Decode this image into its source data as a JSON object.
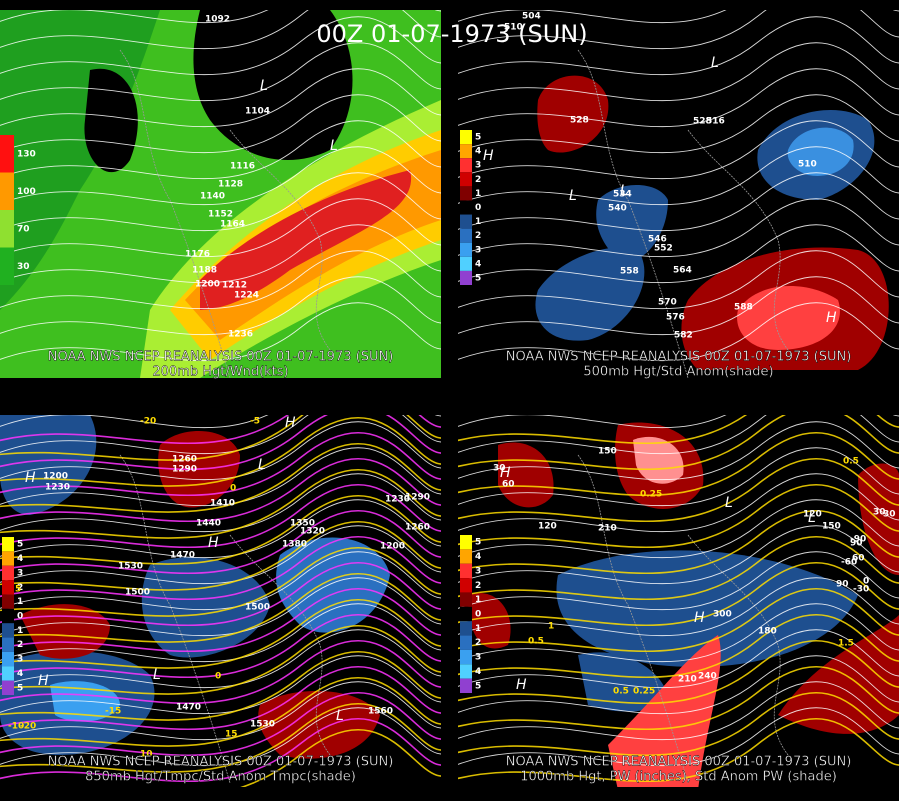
{
  "title": "00Z 01-07-1973 (SUN)",
  "panels": [
    {
      "source": "NOAA NWS NCEP REANALYSIS 00Z 01-07-1973 (SUN)",
      "caption": "200mb Hgt/Wnd(kts)",
      "legend": [
        "130",
        "100",
        "70",
        "30"
      ],
      "contour_labels": [
        "1092",
        "1104",
        "1116",
        "1128",
        "1140",
        "1152",
        "1164",
        "1176",
        "1188",
        "1200",
        "1212",
        "1224",
        "1236"
      ],
      "centers": [
        "L",
        "L"
      ]
    },
    {
      "source": "NOAA NWS NCEP REANALYSIS 00Z 01-07-1973 (SUN)",
      "caption": "500mb Hgt/Std Anom(shade)",
      "legend": [
        "5",
        "4",
        "3",
        "2",
        "1",
        "0",
        "1",
        "2",
        "3",
        "4",
        "5"
      ],
      "contour_labels": [
        "504",
        "510",
        "516",
        "528",
        "534",
        "540",
        "546",
        "552",
        "558",
        "564",
        "570",
        "576",
        "582",
        "588",
        "510",
        "528"
      ],
      "centers": [
        "H",
        "L",
        "L",
        "H",
        "L"
      ]
    },
    {
      "source": "NOAA NWS NCEP REANALYSIS 00Z 01-07-1973 (SUN)",
      "caption": "850mb Hgt/Tmpc/Std Anom Tmpc(shade)",
      "legend": [
        "5",
        "4",
        "3",
        "2",
        "1",
        "0",
        "1",
        "2",
        "3",
        "4",
        "5"
      ],
      "contour_labels": [
        "1200",
        "1230",
        "1260",
        "1290",
        "1410",
        "1440",
        "1470",
        "1500",
        "1530",
        "1350",
        "1380",
        "1320",
        "1290",
        "1230",
        "1260",
        "1200",
        "1560",
        "1470",
        "1500",
        "1530"
      ],
      "temp_labels": [
        "-20",
        "-5",
        "0",
        "5",
        "0",
        "-10",
        "-15",
        "-20",
        "10",
        "15"
      ],
      "centers": [
        "H",
        "L",
        "H",
        "L",
        "H",
        "L",
        "H"
      ]
    },
    {
      "source": "NOAA NWS NCEP REANALYSIS 00Z 01-07-1973 (SUN)",
      "caption": "1000mb Hgt, PW (inches), Std Anom PW (shade)",
      "legend": [
        "5",
        "4",
        "3",
        "2",
        "1",
        "0",
        "1",
        "2",
        "3",
        "4",
        "5"
      ],
      "contour_labels": [
        "30",
        "60",
        "120",
        "150",
        "210",
        "300",
        "240",
        "210",
        "180",
        "120",
        "150",
        "90",
        "60",
        "30",
        "0",
        "-30",
        "-60",
        "-90",
        "30",
        "90"
      ],
      "pw_labels": [
        "0.25",
        "0.5",
        "0.25",
        "0.5",
        "1",
        "1.5",
        "0.5"
      ],
      "centers": [
        "H",
        "L",
        "H",
        "L",
        "H"
      ]
    }
  ]
}
